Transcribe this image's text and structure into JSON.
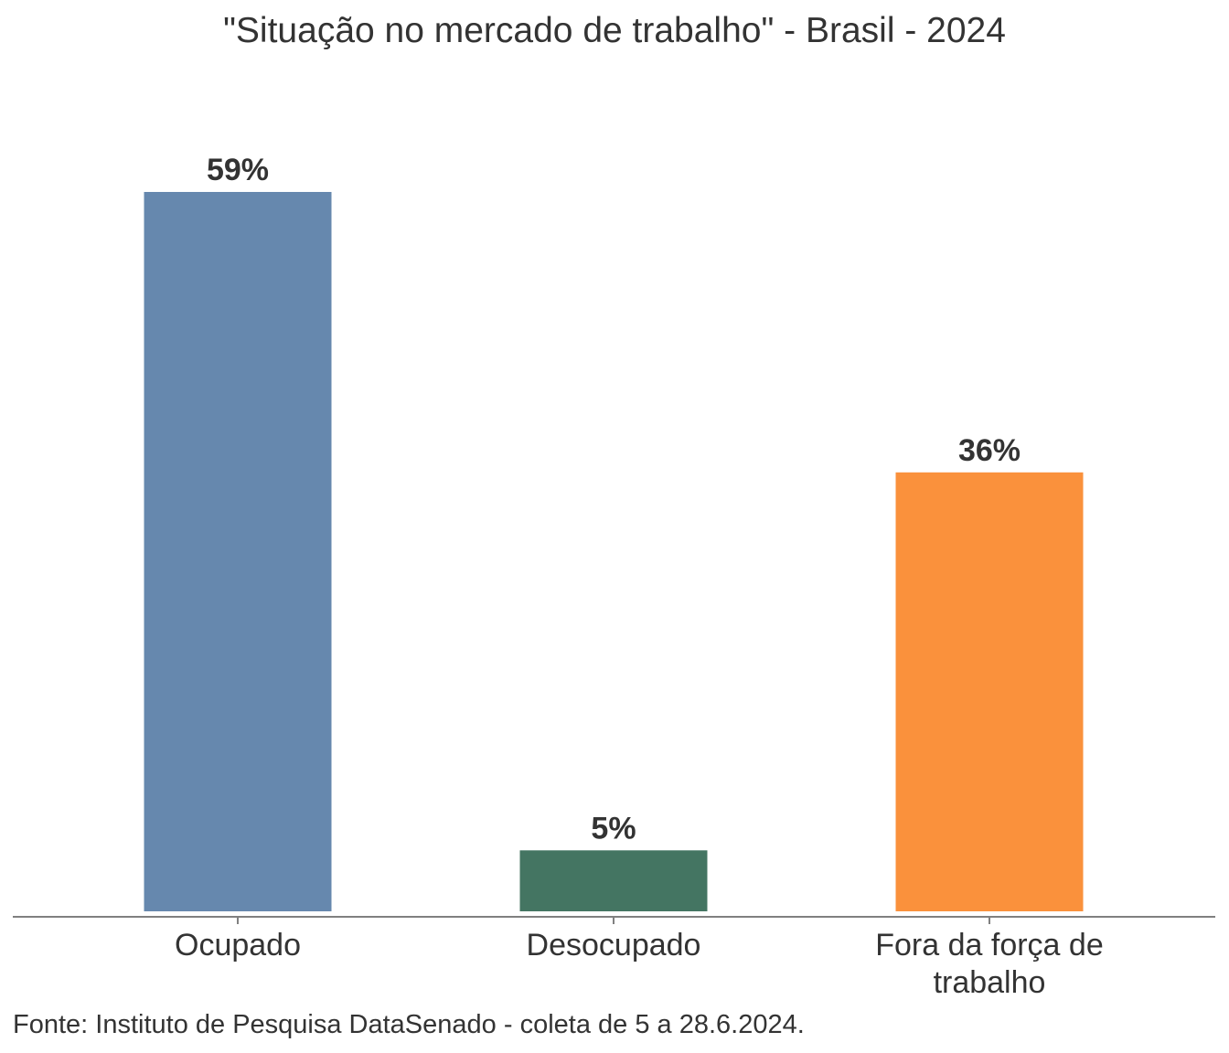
{
  "chart_data": {
    "type": "bar",
    "title": "\"Situação no mercado de trabalho\" - Brasil - 2024",
    "categories": [
      "Ocupado",
      "Desocupado",
      "Fora da força de trabalho"
    ],
    "category_lines": [
      [
        "Ocupado"
      ],
      [
        "Desocupado"
      ],
      [
        "Fora da força de",
        "trabalho"
      ]
    ],
    "values": [
      59,
      5,
      36
    ],
    "value_labels": [
      "59%",
      "5%",
      "36%"
    ],
    "colors": [
      "#6688ae",
      "#447562",
      "#fa913c"
    ],
    "ylim": [
      0,
      59
    ],
    "grid": false,
    "legend": "none",
    "source": "Fonte: Instituto de Pesquisa DataSenado - coleta de 5 a 28.6.2024."
  }
}
